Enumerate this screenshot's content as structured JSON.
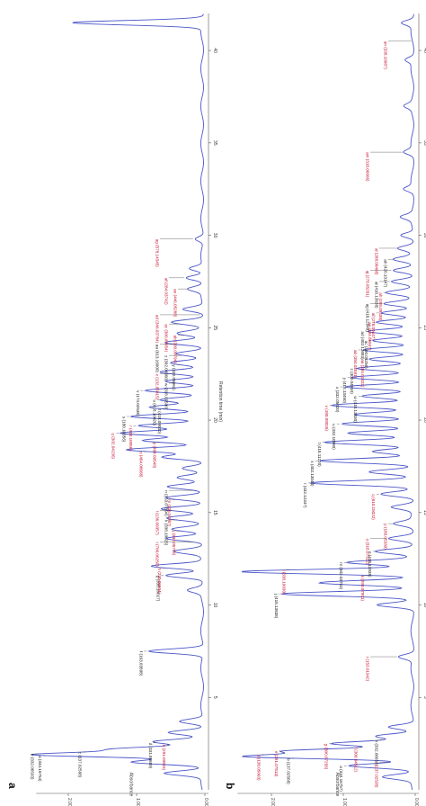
{
  "chart_data": [
    {
      "panel": "a",
      "type": "line",
      "xlabel": "Retention time (min)",
      "ylabel": "Absorbance",
      "xticks": [
        5,
        10,
        15,
        20,
        25,
        30,
        35,
        40
      ],
      "xlim": [
        0,
        42
      ],
      "yticks": [
        "0.00e+0",
        "1.00e+0",
        "2.00e+0"
      ],
      "ylim": [
        0,
        2.6
      ],
      "peaks": [
        {
          "t": 0.9,
          "h": 0.55
        },
        {
          "t": 1.5,
          "h": 1.05
        },
        {
          "t": 1.9,
          "h": 2.45
        },
        {
          "t": 2.2,
          "h": 1.25
        },
        {
          "t": 2.6,
          "h": 0.7
        },
        {
          "t": 3.1,
          "h": 0.5
        },
        {
          "t": 3.7,
          "h": 0.35
        },
        {
          "t": 7.5,
          "h": 0.8
        },
        {
          "t": 10.8,
          "h": 0.2
        },
        {
          "t": 11.6,
          "h": 0.55
        },
        {
          "t": 12.1,
          "h": 0.75
        },
        {
          "t": 12.9,
          "h": 0.4
        },
        {
          "t": 13.6,
          "h": 0.55
        },
        {
          "t": 14.1,
          "h": 0.45
        },
        {
          "t": 14.7,
          "h": 0.5
        },
        {
          "t": 15.2,
          "h": 0.6
        },
        {
          "t": 15.8,
          "h": 0.55
        },
        {
          "t": 16.4,
          "h": 0.5
        },
        {
          "t": 16.9,
          "h": 0.35
        },
        {
          "t": 17.4,
          "h": 0.3
        },
        {
          "t": 18.0,
          "h": 0.6
        },
        {
          "t": 18.4,
          "h": 1.1
        },
        {
          "t": 18.9,
          "h": 0.85
        },
        {
          "t": 19.3,
          "h": 1.2
        },
        {
          "t": 19.7,
          "h": 0.95
        },
        {
          "t": 20.2,
          "h": 1.05
        },
        {
          "t": 20.7,
          "h": 0.75
        },
        {
          "t": 21.1,
          "h": 0.6
        },
        {
          "t": 21.6,
          "h": 0.85
        },
        {
          "t": 22.1,
          "h": 0.55
        },
        {
          "t": 22.6,
          "h": 0.6
        },
        {
          "t": 23.1,
          "h": 0.45
        },
        {
          "t": 23.6,
          "h": 0.4
        },
        {
          "t": 24.2,
          "h": 0.55
        },
        {
          "t": 24.7,
          "h": 0.35
        },
        {
          "t": 25.3,
          "h": 0.45
        },
        {
          "t": 26.0,
          "h": 0.3
        },
        {
          "t": 27.1,
          "h": 0.2
        },
        {
          "t": 27.7,
          "h": 0.25
        },
        {
          "t": 28.2,
          "h": 0.2
        },
        {
          "t": 29.8,
          "h": 0.12
        },
        {
          "t": 41.5,
          "h": 1.9
        }
      ],
      "annotations": [
        {
          "t": 1.85,
          "label": "a (334.16754)",
          "color": "black"
        },
        {
          "t": 1.95,
          "label": "b (332.06533)",
          "color": "black"
        },
        {
          "t": 2.05,
          "label": "c (137.02568)",
          "color": "black"
        },
        {
          "t": 2.45,
          "label": "e (291.09824)",
          "color": "red"
        },
        {
          "t": 2.55,
          "label": "d (331.06689)",
          "color": "black"
        },
        {
          "t": 7.5,
          "label": "f (163.03898)",
          "color": "black"
        },
        {
          "t": 11.6,
          "label": "g (338.10017)",
          "color": "black"
        },
        {
          "t": 12.0,
          "label": "h (290.06504)",
          "color": "red"
        },
        {
          "t": 13.4,
          "label": "i (700.06250)",
          "color": "red"
        },
        {
          "t": 14.0,
          "label": "j (332.05752)",
          "color": "red"
        },
        {
          "t": 14.6,
          "label": "k (338.10025)",
          "color": "black"
        },
        {
          "t": 15.1,
          "label": "l (136.09357)",
          "color": "red"
        },
        {
          "t": 15.7,
          "label": "m (136.04357)",
          "color": "red"
        },
        {
          "t": 16.2,
          "label": "n (153.07594)",
          "color": "black"
        },
        {
          "t": 18.3,
          "label": "o (464.08668)",
          "color": "red"
        },
        {
          "t": 18.8,
          "label": "p (464.09548)",
          "color": "red"
        },
        {
          "t": 19.3,
          "label": "q (302.04236)",
          "color": "red"
        },
        {
          "t": 19.7,
          "label": "r (448.10056)",
          "color": "red"
        },
        {
          "t": 20.2,
          "label": "s (180.10056)",
          "color": "black"
        },
        {
          "t": 20.6,
          "label": "t (418.09000)",
          "color": "black"
        },
        {
          "t": 21.1,
          "label": "u (418.10020)",
          "color": "black"
        },
        {
          "t": 21.6,
          "label": "v (174.02538)",
          "color": "black"
        },
        {
          "t": 22.0,
          "label": "w (318.09590)",
          "color": "black"
        },
        {
          "t": 22.5,
          "label": "x (132.05815)",
          "color": "red"
        },
        {
          "t": 23.0,
          "label": "y (432.05063)",
          "color": "black"
        },
        {
          "t": 23.5,
          "label": "z (302.04360)",
          "color": "black"
        },
        {
          "t": 24.1,
          "label": "aa (613.16009)",
          "color": "black"
        },
        {
          "t": 24.6,
          "label": "ab (300.09794)",
          "color": "red"
        },
        {
          "t": 25.2,
          "label": "ac (300.05054)",
          "color": "red"
        },
        {
          "t": 25.7,
          "label": "ad (346.03784)",
          "color": "red"
        },
        {
          "t": 27.1,
          "label": "ae (446.05288)",
          "color": "red"
        },
        {
          "t": 27.7,
          "label": "af (284.03742)",
          "color": "red"
        },
        {
          "t": 29.8,
          "label": "ag (578.14345)",
          "color": "red"
        }
      ]
    },
    {
      "panel": "b",
      "type": "line",
      "xlabel": "Retention time (min)",
      "ylabel": "Absorbance",
      "xticks": [
        5,
        10,
        15,
        20,
        25,
        30,
        35,
        40
      ],
      "xlim": [
        0,
        42
      ],
      "yticks": [
        "0.00e+0",
        "1.00e+0",
        "2.00e+0"
      ],
      "ylim": [
        0,
        2.6
      ],
      "peaks": [
        {
          "t": 0.7,
          "h": 0.4
        },
        {
          "t": 1.3,
          "h": 0.9
        },
        {
          "t": 1.8,
          "h": 2.3
        },
        {
          "t": 2.1,
          "h": 1.7
        },
        {
          "t": 2.5,
          "h": 1.1
        },
        {
          "t": 2.9,
          "h": 0.5
        },
        {
          "t": 3.4,
          "h": 0.35
        },
        {
          "t": 7.2,
          "h": 0.2
        },
        {
          "t": 10.0,
          "h": 0.5
        },
        {
          "t": 10.6,
          "h": 1.8
        },
        {
          "t": 11.2,
          "h": 1.3
        },
        {
          "t": 11.8,
          "h": 2.4
        },
        {
          "t": 12.3,
          "h": 0.9
        },
        {
          "t": 12.9,
          "h": 0.5
        },
        {
          "t": 13.6,
          "h": 0.35
        },
        {
          "t": 14.4,
          "h": 0.25
        },
        {
          "t": 15.3,
          "h": 0.3
        },
        {
          "t": 16.0,
          "h": 0.45
        },
        {
          "t": 16.6,
          "h": 1.4
        },
        {
          "t": 17.2,
          "h": 0.6
        },
        {
          "t": 17.8,
          "h": 1.3
        },
        {
          "t": 18.3,
          "h": 0.55
        },
        {
          "t": 18.8,
          "h": 1.2
        },
        {
          "t": 19.3,
          "h": 0.9
        },
        {
          "t": 19.8,
          "h": 1.0
        },
        {
          "t": 20.3,
          "h": 0.8
        },
        {
          "t": 20.8,
          "h": 1.1
        },
        {
          "t": 21.3,
          "h": 0.7
        },
        {
          "t": 21.8,
          "h": 0.95
        },
        {
          "t": 22.3,
          "h": 0.85
        },
        {
          "t": 22.8,
          "h": 0.75
        },
        {
          "t": 23.3,
          "h": 0.6
        },
        {
          "t": 23.8,
          "h": 0.7
        },
        {
          "t": 24.3,
          "h": 0.55
        },
        {
          "t": 24.8,
          "h": 0.6
        },
        {
          "t": 25.3,
          "h": 0.5
        },
        {
          "t": 25.8,
          "h": 0.45
        },
        {
          "t": 26.3,
          "h": 0.4
        },
        {
          "t": 26.9,
          "h": 0.35
        },
        {
          "t": 27.5,
          "h": 0.3
        },
        {
          "t": 28.1,
          "h": 0.28
        },
        {
          "t": 28.7,
          "h": 0.25
        },
        {
          "t": 29.3,
          "h": 0.2
        },
        {
          "t": 30.0,
          "h": 0.18
        },
        {
          "t": 31.0,
          "h": 0.15
        },
        {
          "t": 32.5,
          "h": 0.12
        },
        {
          "t": 34.5,
          "h": 0.12
        },
        {
          "t": 37.0,
          "h": 0.1
        },
        {
          "t": 39.5,
          "h": 0.1
        },
        {
          "t": 41.5,
          "h": 0.15
        }
      ],
      "annotations": [
        {
          "t": 1.3,
          "label": "a (334.16757)",
          "color": "black"
        },
        {
          "t": 1.5,
          "label": "c (137.02538)",
          "color": "red"
        },
        {
          "t": 1.7,
          "label": "b (137.02568)",
          "color": "black"
        },
        {
          "t": 1.9,
          "label": "d (138.05003)",
          "color": "red"
        },
        {
          "t": 2.1,
          "label": "e (291.07813)",
          "color": "red"
        },
        {
          "t": 2.3,
          "label": "f (300.04512)",
          "color": "red"
        },
        {
          "t": 2.5,
          "label": "g (300.07256)",
          "color": "red"
        },
        {
          "t": 2.7,
          "label": "h (332.06653)",
          "color": "black"
        },
        {
          "t": 7.2,
          "label": "i (153.01942)",
          "color": "red"
        },
        {
          "t": 10.6,
          "label": "j (418.13838)",
          "color": "black"
        },
        {
          "t": 11.6,
          "label": "k (290.07901)",
          "color": "red"
        },
        {
          "t": 11.9,
          "label": "l (338.10030)",
          "color": "red"
        },
        {
          "t": 12.3,
          "label": "m (302.03753)",
          "color": "black"
        },
        {
          "t": 12.9,
          "label": "n (418.13838)",
          "color": "black"
        },
        {
          "t": 13.6,
          "label": "o (318.07322)",
          "color": "red"
        },
        {
          "t": 14.4,
          "label": "p (180.05330)",
          "color": "red"
        },
        {
          "t": 16.0,
          "label": "q (610.15022)",
          "color": "red"
        },
        {
          "t": 16.6,
          "label": "r (432.12347)",
          "color": "black"
        },
        {
          "t": 17.8,
          "label": "s (402.13043)",
          "color": "black"
        },
        {
          "t": 18.8,
          "label": "t (418.11220)",
          "color": "black"
        },
        {
          "t": 19.8,
          "label": "u (432.10860)",
          "color": "black"
        },
        {
          "t": 20.8,
          "label": "v (180.08026)",
          "color": "red"
        },
        {
          "t": 21.3,
          "label": "w (418.13830)",
          "color": "black"
        },
        {
          "t": 21.8,
          "label": "x (332.05920)",
          "color": "black"
        },
        {
          "t": 22.3,
          "label": "y (418.13450)",
          "color": "black"
        },
        {
          "t": 22.8,
          "label": "z (302.04810)",
          "color": "black"
        },
        {
          "t": 23.3,
          "label": "aa (384.01422)",
          "color": "red"
        },
        {
          "t": 23.8,
          "label": "ab (350.02591)",
          "color": "red"
        },
        {
          "t": 24.3,
          "label": "ac (300.05256)",
          "color": "black"
        },
        {
          "t": 24.8,
          "label": "ad (402.13683)",
          "color": "black"
        },
        {
          "t": 25.3,
          "label": "ae (384.06847)",
          "color": "red"
        },
        {
          "t": 25.8,
          "label": "af (278.09447)",
          "color": "red"
        },
        {
          "t": 26.3,
          "label": "ag (418.12849)",
          "color": "black"
        },
        {
          "t": 26.9,
          "label": "ah (288.09438)",
          "color": "red"
        },
        {
          "t": 27.5,
          "label": "ai (418.13638)",
          "color": "black"
        },
        {
          "t": 28.1,
          "label": "aj (278.05281)",
          "color": "red"
        },
        {
          "t": 28.7,
          "label": "ak (420.13147)",
          "color": "black"
        },
        {
          "t": 29.3,
          "label": "al (288.08468)",
          "color": "red"
        },
        {
          "t": 34.5,
          "label": "am (318.06606)",
          "color": "red"
        },
        {
          "t": 40.5,
          "label": "an (338.10087)",
          "color": "red"
        }
      ]
    }
  ]
}
